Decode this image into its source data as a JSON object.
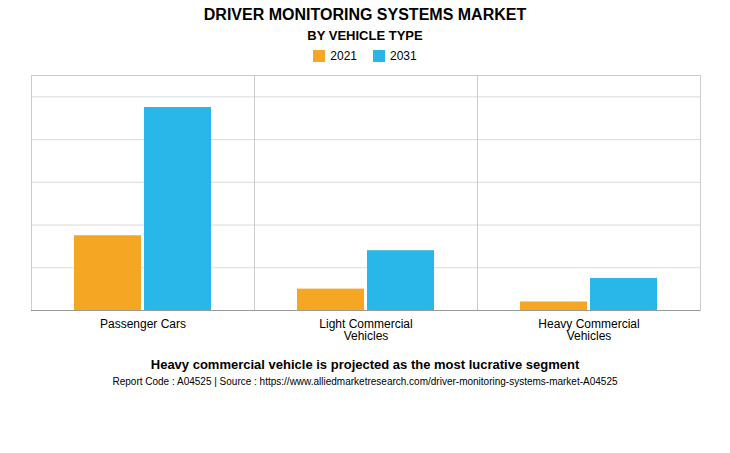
{
  "chart_data": {
    "type": "bar",
    "title": "DRIVER MONITORING SYSTEMS MARKET",
    "subtitle": "BY VEHICLE TYPE",
    "categories": [
      "Passenger Cars",
      "Light Commercial\nVehicles",
      "Heavy Commercial\nVehicles"
    ],
    "series": [
      {
        "name": "2021",
        "color": "#F5A623",
        "values": [
          3.5,
          1.0,
          0.4
        ]
      },
      {
        "name": "2031",
        "color": "#29B6E8",
        "values": [
          9.5,
          2.8,
          1.5
        ]
      }
    ],
    "ylim": [
      0,
      11
    ],
    "yticks": [
      0,
      2,
      4,
      6,
      8,
      10
    ],
    "grid": true,
    "tick_labels": "x",
    "legend": "top",
    "annotations": [
      "Heavy commercial vehicle is projected as the most lucrative segment",
      "Report Code : A04525  |  Source : https://www.alliedmarketresearch.com/driver-monitoring-systems-market-A04525"
    ]
  }
}
